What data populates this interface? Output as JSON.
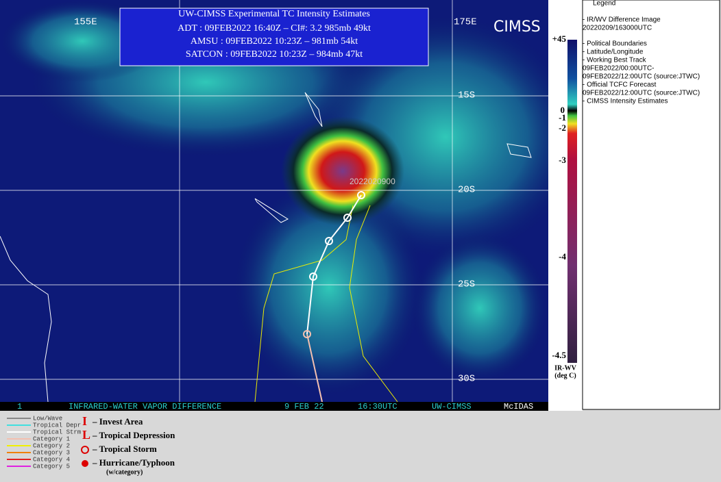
{
  "header": {
    "title": "UW-CIMSS Experimental TC Intensity Estimates",
    "lines": [
      "ADT : 09FEB2022 16:40Z –  CI#: 3.2  985mb  49kt",
      "AMSU : 09FEB2022 10:23Z –  981mb  54kt",
      "SATCON : 09FEB2022 10:23Z –  984mb  47kt"
    ]
  },
  "map": {
    "lon_labels": [
      "155E",
      "175E"
    ],
    "lat_labels": [
      "15S",
      "20S",
      "25S",
      "30S"
    ],
    "track_label": "2022020900"
  },
  "status_bar": [
    "1",
    "INFRARED-WATER VAPOR DIFFERENCE",
    "9 FEB 22",
    "16:30UTC",
    "UW-CIMSS",
    "McIDAS"
  ],
  "colorbar": {
    "labels": [
      "+45",
      "0",
      "-1",
      "-2",
      "-3",
      "-4",
      "-4.5"
    ],
    "units": [
      "IR-WV",
      "(deg C)"
    ]
  },
  "legend": {
    "title": "Legend",
    "items": [
      "- IR/WV Difference Image",
      "20220209/163000UTC",
      "- Political Boundaries",
      "- Latitude/Longitude",
      "- Working Best Track",
      "09FEB2022/00:00UTC-",
      "09FEB2022/12:00UTC   (source:JTWC)",
      "- Official TCFC Forecast",
      "09FEB2022/12:00UTC  (source:JTWC)",
      "- CIMSS Intensity Estimates"
    ]
  },
  "key": {
    "tracks": [
      "Low/Wave",
      "Tropical Depr",
      "Tropical Strm",
      "Category 1",
      "Category 2",
      "Category 3",
      "Category 4",
      "Category 5"
    ],
    "symbols": [
      {
        "glyph": "I",
        "label": "– Invest Area"
      },
      {
        "glyph": "L",
        "label": "– Tropical Depression"
      },
      {
        "label": "– Tropical Storm"
      },
      {
        "label": "– Hurricane/Typhoon"
      }
    ],
    "note": "(w/category)"
  }
}
